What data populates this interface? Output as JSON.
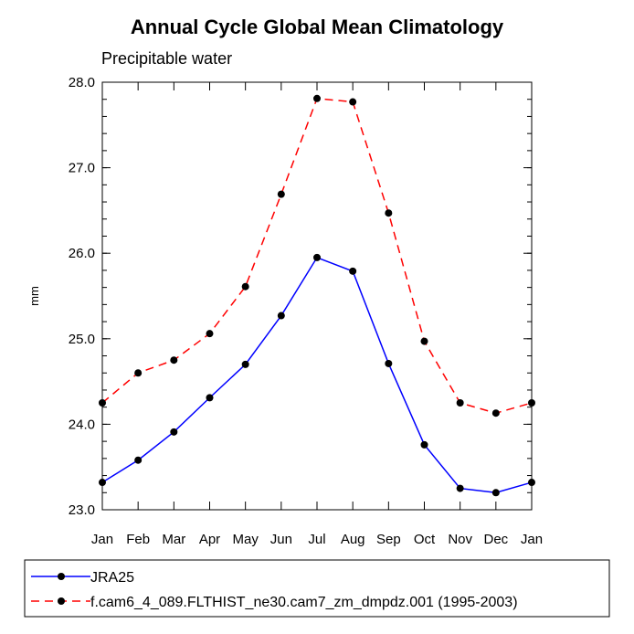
{
  "chart_data": {
    "type": "line",
    "title": "Annual Cycle Global Mean Climatology",
    "subtitle": "Precipitable water",
    "xlabel": "",
    "ylabel": "mm",
    "categories": [
      "Jan",
      "Feb",
      "Mar",
      "Apr",
      "May",
      "Jun",
      "Jul",
      "Aug",
      "Sep",
      "Oct",
      "Nov",
      "Dec",
      "Jan"
    ],
    "ylim": [
      23.0,
      28.0
    ],
    "yticks": [
      "23.0",
      "24.0",
      "25.0",
      "26.0",
      "27.0",
      "28.0"
    ],
    "grid": false,
    "legend_position": "bottom",
    "series": [
      {
        "name": "JRA25",
        "color": "#0000ff",
        "line_style": "solid",
        "marker": "filled-circle",
        "values": [
          23.32,
          23.58,
          23.91,
          24.31,
          24.7,
          25.27,
          25.95,
          25.79,
          24.71,
          23.76,
          23.25,
          23.2,
          23.32
        ]
      },
      {
        "name": "f.cam6_4_089.FLTHIST_ne30.cam7_zm_dmpdz.001 (1995-2003)",
        "color": "#ff0000",
        "line_style": "dashed",
        "marker": "filled-circle",
        "values": [
          24.25,
          24.6,
          24.75,
          25.06,
          25.61,
          26.69,
          27.81,
          27.77,
          26.47,
          24.97,
          24.25,
          24.13,
          24.25
        ]
      }
    ]
  }
}
